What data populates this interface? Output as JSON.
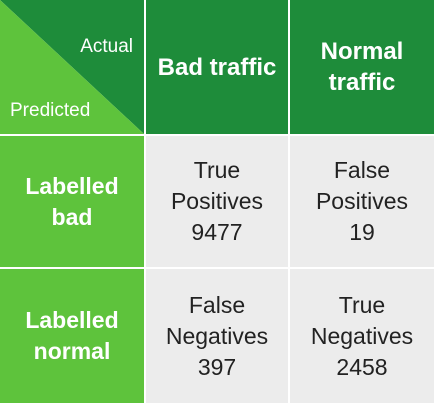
{
  "corner": {
    "actual_label": "Actual",
    "predicted_label": "Predicted"
  },
  "columns": [
    {
      "lines": [
        "Bad traffic"
      ]
    },
    {
      "lines": [
        "Normal",
        "traffic"
      ]
    }
  ],
  "rows": [
    {
      "lines": [
        "Labelled",
        "bad"
      ],
      "cells": [
        {
          "lines": [
            "True",
            "Positives"
          ],
          "value": "9477"
        },
        {
          "lines": [
            "False",
            "Positives"
          ],
          "value": "19"
        }
      ]
    },
    {
      "lines": [
        "Labelled",
        "normal"
      ],
      "cells": [
        {
          "lines": [
            "False",
            "Negatives"
          ],
          "value": "397"
        },
        {
          "lines": [
            "True",
            "Negatives"
          ],
          "value": "2458"
        }
      ]
    }
  ],
  "colors": {
    "dark_green": "#1e8c3a",
    "light_green": "#5ec33c",
    "cell_gray": "#ececec",
    "text_dark": "#222222",
    "text_light": "#ffffff"
  }
}
